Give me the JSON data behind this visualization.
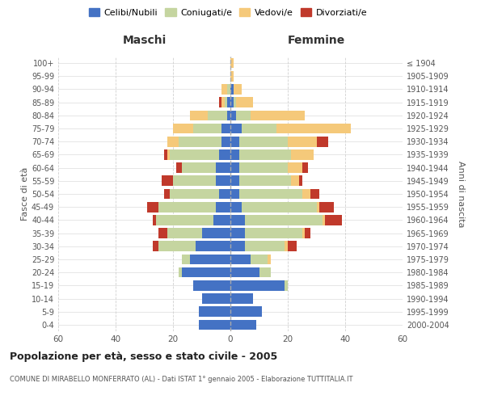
{
  "age_groups": [
    "0-4",
    "5-9",
    "10-14",
    "15-19",
    "20-24",
    "25-29",
    "30-34",
    "35-39",
    "40-44",
    "45-49",
    "50-54",
    "55-59",
    "60-64",
    "65-69",
    "70-74",
    "75-79",
    "80-84",
    "85-89",
    "90-94",
    "95-99",
    "100+"
  ],
  "birth_years": [
    "2000-2004",
    "1995-1999",
    "1990-1994",
    "1985-1989",
    "1980-1984",
    "1975-1979",
    "1970-1974",
    "1965-1969",
    "1960-1964",
    "1955-1959",
    "1950-1954",
    "1945-1949",
    "1940-1944",
    "1935-1939",
    "1930-1934",
    "1925-1929",
    "1920-1924",
    "1915-1919",
    "1910-1914",
    "1905-1909",
    "≤ 1904"
  ],
  "colors": {
    "celibi": "#4472c4",
    "coniugati": "#c5d5a0",
    "vedovi": "#f5c97a",
    "divorziati": "#c0392b"
  },
  "males": {
    "celibi": [
      11,
      11,
      10,
      13,
      17,
      14,
      12,
      10,
      6,
      5,
      4,
      5,
      5,
      4,
      3,
      3,
      1,
      1,
      0,
      0,
      0
    ],
    "coniugati": [
      0,
      0,
      0,
      0,
      1,
      3,
      13,
      12,
      20,
      20,
      17,
      15,
      12,
      17,
      15,
      10,
      7,
      1,
      1,
      0,
      0
    ],
    "vedovi": [
      0,
      0,
      0,
      0,
      0,
      0,
      0,
      0,
      0,
      0,
      0,
      0,
      0,
      1,
      4,
      7,
      6,
      1,
      2,
      0,
      0
    ],
    "divorziati": [
      0,
      0,
      0,
      0,
      0,
      0,
      2,
      3,
      1,
      4,
      2,
      4,
      2,
      1,
      0,
      0,
      0,
      1,
      0,
      0,
      0
    ]
  },
  "females": {
    "celibi": [
      9,
      11,
      8,
      19,
      10,
      7,
      5,
      5,
      5,
      4,
      3,
      3,
      3,
      3,
      3,
      4,
      2,
      1,
      1,
      0,
      0
    ],
    "coniugati": [
      0,
      0,
      0,
      1,
      4,
      6,
      14,
      20,
      27,
      26,
      22,
      18,
      17,
      18,
      17,
      12,
      5,
      1,
      0,
      0,
      0
    ],
    "vedovi": [
      0,
      0,
      0,
      0,
      0,
      1,
      1,
      1,
      1,
      1,
      3,
      3,
      5,
      8,
      10,
      26,
      19,
      6,
      3,
      1,
      1
    ],
    "divorziati": [
      0,
      0,
      0,
      0,
      0,
      0,
      3,
      2,
      6,
      5,
      3,
      1,
      2,
      0,
      4,
      0,
      0,
      0,
      0,
      0,
      0
    ]
  },
  "title": "Popolazione per età, sesso e stato civile - 2005",
  "subtitle": "COMUNE DI MIRABELLO MONFERRATO (AL) - Dati ISTAT 1° gennaio 2005 - Elaborazione TUTTITALIA.IT",
  "xlabel_left": "Maschi",
  "xlabel_right": "Femmine",
  "ylabel_left": "Fasce di età",
  "ylabel_right": "Anni di nascita",
  "xlim": 60,
  "legend_labels": [
    "Celibi/Nubili",
    "Coniugati/e",
    "Vedovi/e",
    "Divorziati/e"
  ],
  "background_color": "#ffffff",
  "grid_color": "#cccccc"
}
